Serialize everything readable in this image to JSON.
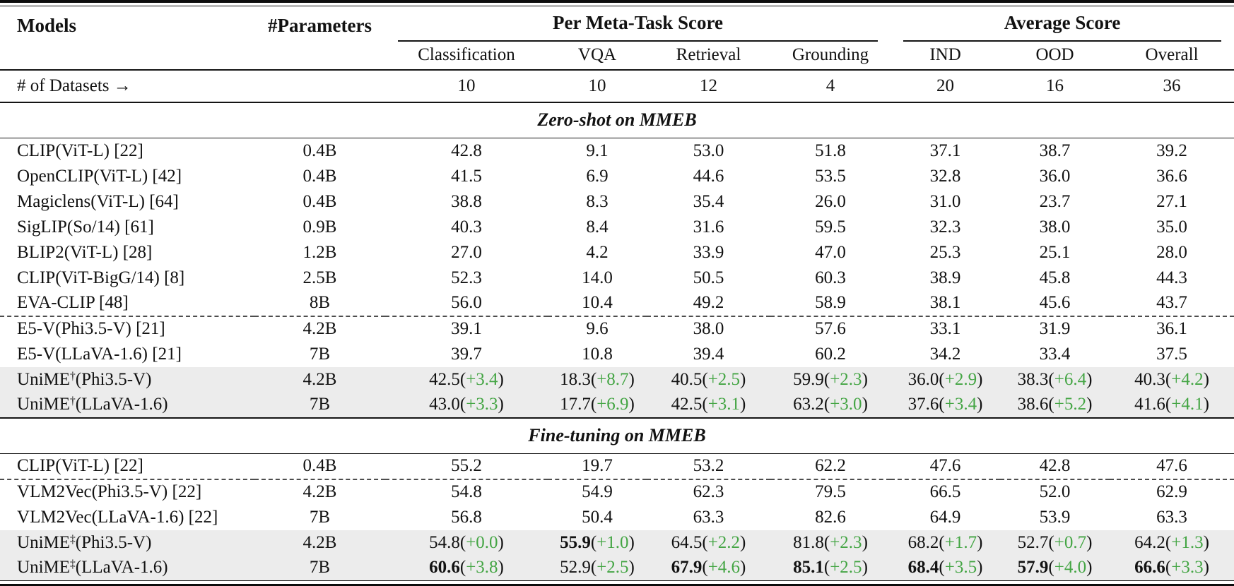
{
  "colors": {
    "gain_green": "#44a544",
    "highlight_bg": "#ececec",
    "rule_color": "#141414",
    "dashed_color": "#4d4d4d"
  },
  "table": {
    "header": {
      "models": "Models",
      "parameters": "#Parameters",
      "group1": "Per Meta-Task Score",
      "group2": "Average Score",
      "subcolumns": [
        "Classification",
        "VQA",
        "Retrieval",
        "Grounding",
        "IND",
        "OOD",
        "Overall"
      ]
    },
    "datasets_row": {
      "label": "# of Datasets →",
      "counts": [
        "10",
        "10",
        "12",
        "4",
        "20",
        "16",
        "36"
      ]
    },
    "sections": [
      {
        "title": "Zero-shot on MMEB",
        "rows": [
          {
            "model": "CLIP(ViT-L) [22]",
            "params": "0.4B",
            "highlight": false,
            "dashed_above": false,
            "cells": [
              {
                "v": "42.8"
              },
              {
                "v": "9.1"
              },
              {
                "v": "53.0"
              },
              {
                "v": "51.8"
              },
              {
                "v": "37.1"
              },
              {
                "v": "38.7"
              },
              {
                "v": "39.2"
              }
            ]
          },
          {
            "model": "OpenCLIP(ViT-L) [42]",
            "params": "0.4B",
            "highlight": false,
            "dashed_above": false,
            "cells": [
              {
                "v": "41.5"
              },
              {
                "v": "6.9"
              },
              {
                "v": "44.6"
              },
              {
                "v": "53.5"
              },
              {
                "v": "32.8"
              },
              {
                "v": "36.0"
              },
              {
                "v": "36.6"
              }
            ]
          },
          {
            "model": "Magiclens(ViT-L) [64]",
            "params": "0.4B",
            "highlight": false,
            "dashed_above": false,
            "cells": [
              {
                "v": "38.8"
              },
              {
                "v": "8.3"
              },
              {
                "v": "35.4"
              },
              {
                "v": "26.0"
              },
              {
                "v": "31.0"
              },
              {
                "v": "23.7"
              },
              {
                "v": "27.1"
              }
            ]
          },
          {
            "model": "SigLIP(So/14) [61]",
            "params": "0.9B",
            "highlight": false,
            "dashed_above": false,
            "cells": [
              {
                "v": "40.3"
              },
              {
                "v": "8.4"
              },
              {
                "v": "31.6"
              },
              {
                "v": "59.5"
              },
              {
                "v": "32.3"
              },
              {
                "v": "38.0"
              },
              {
                "v": "35.0"
              }
            ]
          },
          {
            "model": "BLIP2(ViT-L) [28]",
            "params": "1.2B",
            "highlight": false,
            "dashed_above": false,
            "cells": [
              {
                "v": "27.0"
              },
              {
                "v": "4.2"
              },
              {
                "v": "33.9"
              },
              {
                "v": "47.0"
              },
              {
                "v": "25.3"
              },
              {
                "v": "25.1"
              },
              {
                "v": "28.0"
              }
            ]
          },
          {
            "model": "CLIP(ViT-BigG/14) [8]",
            "params": "2.5B",
            "highlight": false,
            "dashed_above": false,
            "cells": [
              {
                "v": "52.3"
              },
              {
                "v": "14.0"
              },
              {
                "v": "50.5"
              },
              {
                "v": "60.3"
              },
              {
                "v": "38.9"
              },
              {
                "v": "45.8"
              },
              {
                "v": "44.3"
              }
            ]
          },
          {
            "model": "EVA-CLIP [48]",
            "params": "8B",
            "highlight": false,
            "dashed_above": false,
            "cells": [
              {
                "v": "56.0"
              },
              {
                "v": "10.4"
              },
              {
                "v": "49.2"
              },
              {
                "v": "58.9"
              },
              {
                "v": "38.1"
              },
              {
                "v": "45.6"
              },
              {
                "v": "43.7"
              }
            ]
          },
          {
            "model": "E5-V(Phi3.5-V) [21]",
            "params": "4.2B",
            "highlight": false,
            "dashed_above": true,
            "cells": [
              {
                "v": "39.1"
              },
              {
                "v": "9.6"
              },
              {
                "v": "38.0"
              },
              {
                "v": "57.6"
              },
              {
                "v": "33.1"
              },
              {
                "v": "31.9"
              },
              {
                "v": "36.1"
              }
            ]
          },
          {
            "model": "E5-V(LLaVA-1.6) [21]",
            "params": "7B",
            "highlight": false,
            "dashed_above": false,
            "cells": [
              {
                "v": "39.7"
              },
              {
                "v": "10.8"
              },
              {
                "v": "39.4"
              },
              {
                "v": "60.2"
              },
              {
                "v": "34.2"
              },
              {
                "v": "33.4"
              },
              {
                "v": "37.5"
              }
            ]
          },
          {
            "model": "UniME†(Phi3.5-V)",
            "params": "4.2B",
            "highlight": true,
            "dashed_above": false,
            "cells": [
              {
                "v": "42.5",
                "g": "+3.4"
              },
              {
                "v": "18.3",
                "g": "+8.7"
              },
              {
                "v": "40.5",
                "g": "+2.5"
              },
              {
                "v": "59.9",
                "g": "+2.3"
              },
              {
                "v": "36.0",
                "g": "+2.9"
              },
              {
                "v": "38.3",
                "g": "+6.4"
              },
              {
                "v": "40.3",
                "g": "+4.2"
              }
            ]
          },
          {
            "model": "UniME†(LLaVA-1.6)",
            "params": "7B",
            "highlight": true,
            "dashed_above": false,
            "cells": [
              {
                "v": "43.0",
                "g": "+3.3"
              },
              {
                "v": "17.7",
                "g": "+6.9"
              },
              {
                "v": "42.5",
                "g": "+3.1"
              },
              {
                "v": "63.2",
                "g": "+3.0"
              },
              {
                "v": "37.6",
                "g": "+3.4"
              },
              {
                "v": "38.6",
                "g": "+5.2"
              },
              {
                "v": "41.6",
                "g": "+4.1"
              }
            ]
          }
        ]
      },
      {
        "title": "Fine-tuning on MMEB",
        "rows": [
          {
            "model": "CLIP(ViT-L) [22]",
            "params": "0.4B",
            "highlight": false,
            "dashed_above": false,
            "cells": [
              {
                "v": "55.2"
              },
              {
                "v": "19.7"
              },
              {
                "v": "53.2"
              },
              {
                "v": "62.2"
              },
              {
                "v": "47.6"
              },
              {
                "v": "42.8"
              },
              {
                "v": "47.6"
              }
            ]
          },
          {
            "model": "VLM2Vec(Phi3.5-V) [22]",
            "params": "4.2B",
            "highlight": false,
            "dashed_above": true,
            "cells": [
              {
                "v": "54.8"
              },
              {
                "v": "54.9"
              },
              {
                "v": "62.3"
              },
              {
                "v": "79.5"
              },
              {
                "v": "66.5"
              },
              {
                "v": "52.0"
              },
              {
                "v": "62.9"
              }
            ]
          },
          {
            "model": "VLM2Vec(LLaVA-1.6) [22]",
            "params": "7B",
            "highlight": false,
            "dashed_above": false,
            "cells": [
              {
                "v": "56.8"
              },
              {
                "v": "50.4"
              },
              {
                "v": "63.3"
              },
              {
                "v": "82.6"
              },
              {
                "v": "64.9"
              },
              {
                "v": "53.9"
              },
              {
                "v": "63.3"
              }
            ]
          },
          {
            "model": "UniME‡(Phi3.5-V)",
            "params": "4.2B",
            "highlight": true,
            "dashed_above": false,
            "cells": [
              {
                "v": "54.8",
                "g": "+0.0"
              },
              {
                "v": "55.9",
                "g": "+1.0",
                "b": true
              },
              {
                "v": "64.5",
                "g": "+2.2"
              },
              {
                "v": "81.8",
                "g": "+2.3"
              },
              {
                "v": "68.2",
                "g": "+1.7"
              },
              {
                "v": "52.7",
                "g": "+0.7"
              },
              {
                "v": "64.2",
                "g": "+1.3"
              }
            ]
          },
          {
            "model": "UniME‡(LLaVA-1.6)",
            "params": "7B",
            "highlight": true,
            "dashed_above": false,
            "cells": [
              {
                "v": "60.6",
                "g": "+3.8",
                "b": true
              },
              {
                "v": "52.9",
                "g": "+2.5"
              },
              {
                "v": "67.9",
                "g": "+4.6",
                "b": true
              },
              {
                "v": "85.1",
                "g": "+2.5",
                "b": true
              },
              {
                "v": "68.4",
                "g": "+3.5",
                "b": true
              },
              {
                "v": "57.9",
                "g": "+4.0",
                "b": true
              },
              {
                "v": "66.6",
                "g": "+3.3",
                "b": true
              }
            ]
          }
        ]
      }
    ]
  }
}
